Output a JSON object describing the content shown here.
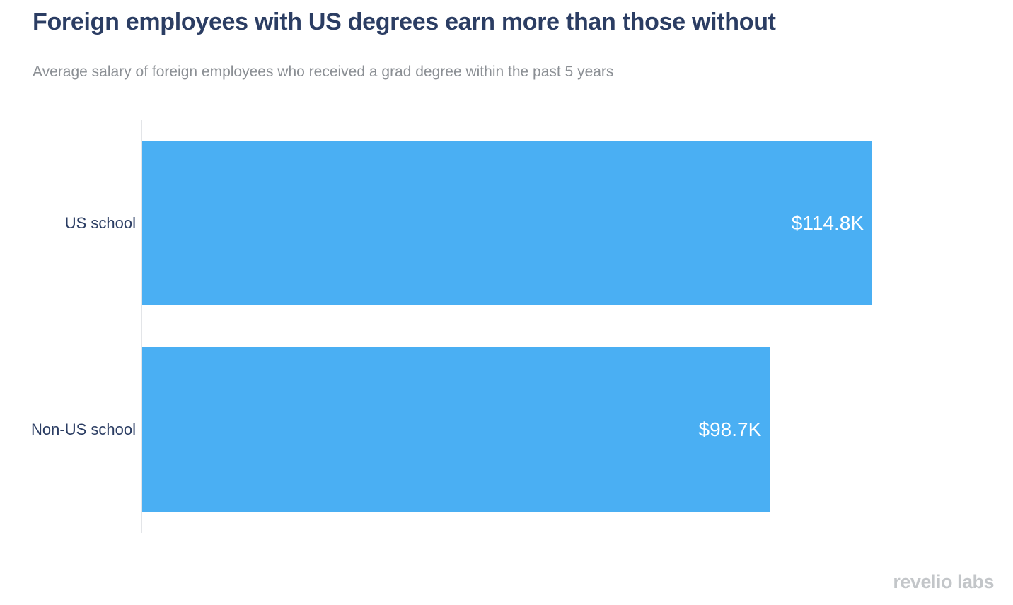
{
  "chart_data": {
    "type": "bar",
    "orientation": "horizontal",
    "title": "Foreign employees with US degrees earn more than those without",
    "subtitle": "Average salary of foreign employees who received a grad degree within the past 5 years",
    "categories": [
      "US school",
      "Non-US school"
    ],
    "values": [
      114.8,
      98.7
    ],
    "value_labels": [
      "$114.8K",
      "$98.7K"
    ],
    "unit": "$K",
    "xlim": [
      0,
      114.8
    ],
    "grid": false,
    "legend": "none",
    "bar_color": "#4aaff3"
  },
  "branding": {
    "logo_text": "revelio labs"
  }
}
